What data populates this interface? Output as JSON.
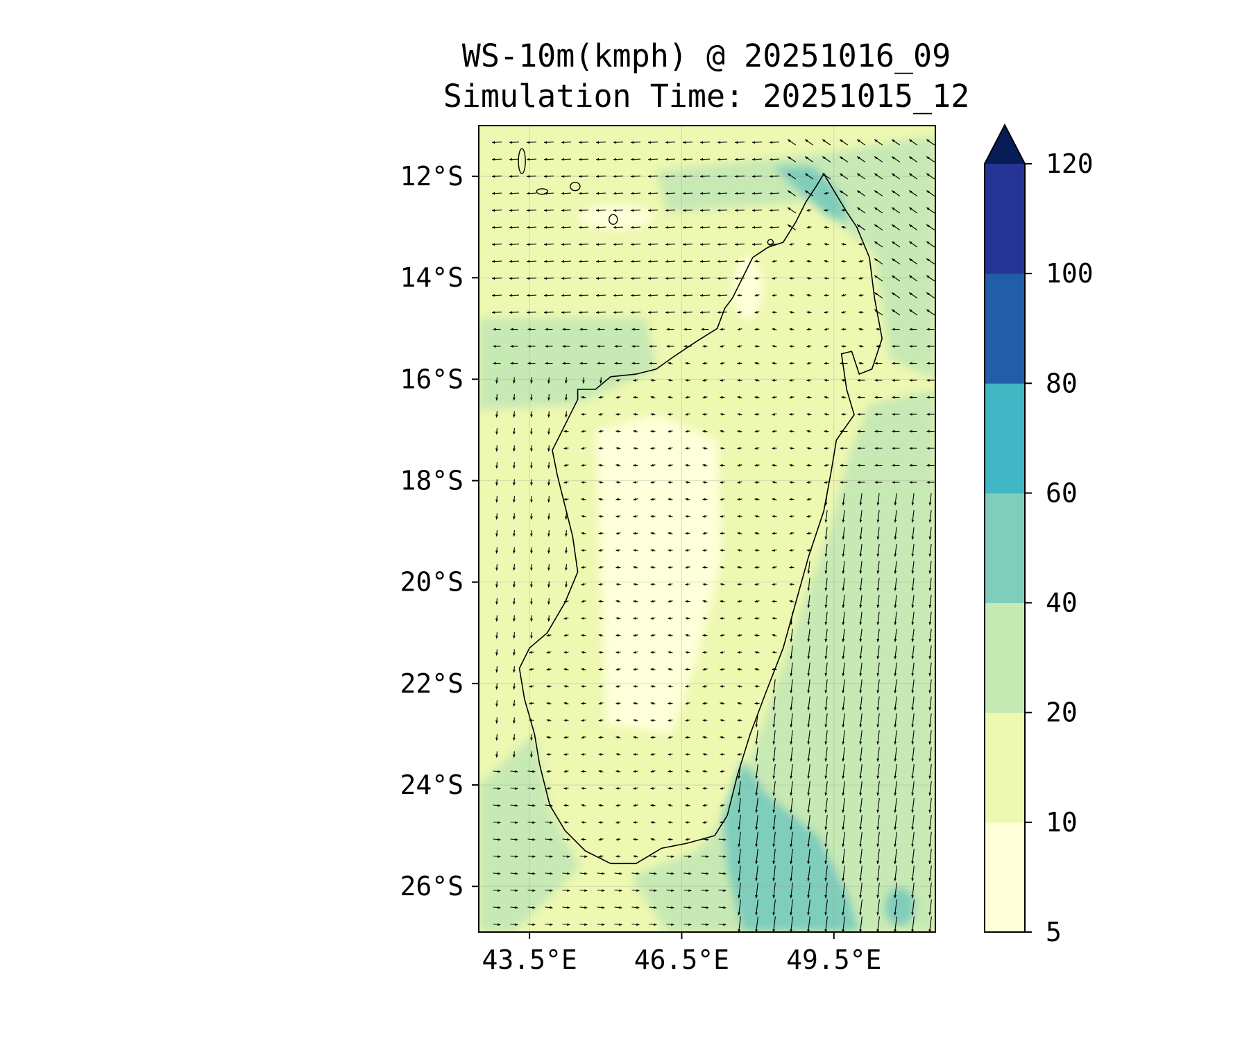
{
  "title": {
    "line1": "WS-10m(kmph) @ 20251016_09",
    "line2": "Simulation Time: 20251015_12"
  },
  "chart_data": {
    "type": "map",
    "variable": "10 m wind speed (kmph) with wind vectors",
    "lon_range": [
      42.5,
      51.5
    ],
    "lat_range": [
      -26.9,
      -11.0
    ],
    "lat_ticks": [
      {
        "value": -12,
        "label": "12°S"
      },
      {
        "value": -14,
        "label": "14°S"
      },
      {
        "value": -16,
        "label": "16°S"
      },
      {
        "value": -18,
        "label": "18°S"
      },
      {
        "value": -20,
        "label": "20°S"
      },
      {
        "value": -22,
        "label": "22°S"
      },
      {
        "value": -24,
        "label": "24°S"
      },
      {
        "value": -26,
        "label": "26°S"
      }
    ],
    "lon_ticks": [
      {
        "value": 43.5,
        "label": "43.5°E"
      },
      {
        "value": 46.5,
        "label": "46.5°E"
      },
      {
        "value": 49.5,
        "label": "49.5°E"
      }
    ],
    "colorbar": {
      "levels": [
        5,
        10,
        20,
        40,
        60,
        80,
        100,
        120
      ],
      "labels": [
        "5",
        "10",
        "20",
        "40",
        "60",
        "80",
        "100",
        "120"
      ],
      "colors": [
        "#ffffd9",
        "#edf8b1",
        "#c7e9b4",
        "#7fcdbb",
        "#41b6c4",
        "#225ea8",
        "#253494"
      ],
      "extend_color": "#081d58",
      "extend": "max"
    },
    "grid": true
  }
}
